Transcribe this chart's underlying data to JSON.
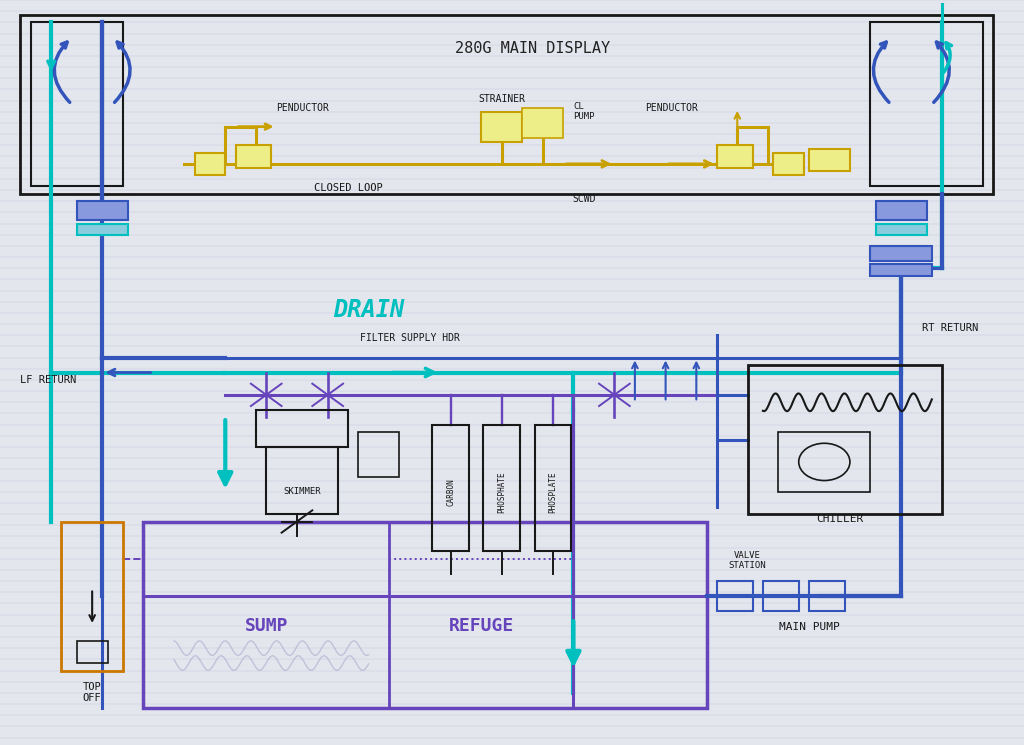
{
  "bg_color": "#e4e6ee",
  "line_cyan": "#00bfbf",
  "line_blue": "#3355bb",
  "line_purple": "#6644bb",
  "line_yellow": "#c8a000",
  "line_orange": "#cc7700",
  "line_black": "#181818",
  "title": "280G MAIN DISPLAY",
  "lw_thick": 3.0,
  "lw_med": 2.2,
  "lw_thin": 1.4,
  "labels": {
    "penductor_left": "PENDUCTOR",
    "strainer": "STRAINER",
    "cl_pump": "CL\nPUMP",
    "scwd": "SCWD",
    "penductor_right": "PENDUCTOR",
    "closed_loop": "CLOSED LOOP",
    "drain": "DRAIN",
    "lf_return": "LF RETURN",
    "rt_return": "RT RETURN",
    "filter_supply_hdr": "FILTER SUPPLY HDR",
    "skimmer": "SKIMMER",
    "carbon": "CARBON",
    "phosphate": "PHOSPHATE",
    "phosplate": "PHOSPLATE",
    "sump": "SUMP",
    "refuge": "REFUGE",
    "valve_station": "VALVE\nSTATION",
    "main_pump": "MAIN PUMP",
    "chiller": "CHILLER",
    "top_off": "TOP\nOFF"
  }
}
